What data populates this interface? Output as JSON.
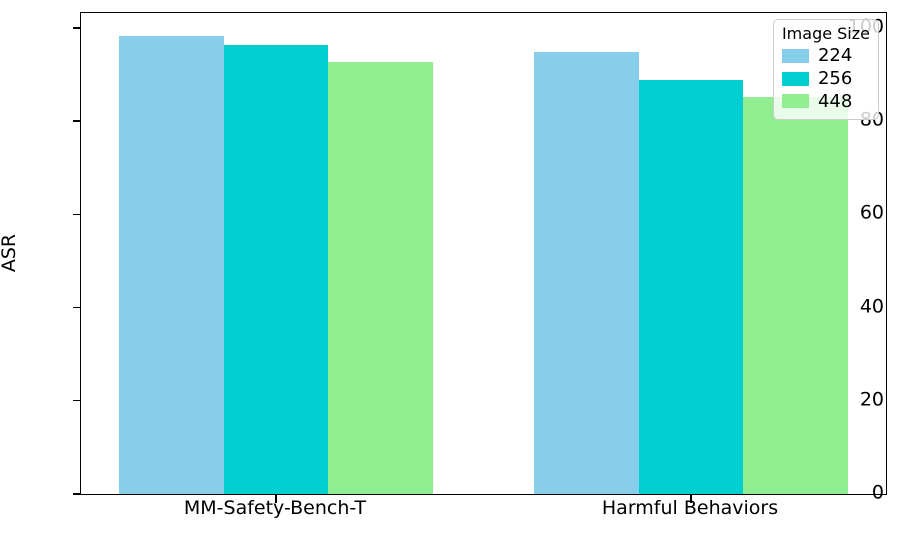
{
  "figure": {
    "background": "#ffffff"
  },
  "chart_data": {
    "type": "bar",
    "title": "",
    "xlabel": "",
    "ylabel": "ASR",
    "categories": [
      "MM-Safety-Bench-T",
      "Harmful Behaviors"
    ],
    "series": [
      {
        "name": "224",
        "color": "#87CEEB",
        "values": [
          98.3,
          94.8
        ]
      },
      {
        "name": "256",
        "color": "#00CED1",
        "values": [
          96.4,
          88.9
        ]
      },
      {
        "name": "448",
        "color": "#90EE90",
        "values": [
          92.7,
          85.2
        ]
      }
    ],
    "ylim": [
      0,
      103.2
    ],
    "yticks": [
      0,
      20,
      40,
      60,
      80,
      100
    ],
    "grid": false,
    "legend": {
      "title": "Image Size",
      "position": "upper right"
    }
  }
}
